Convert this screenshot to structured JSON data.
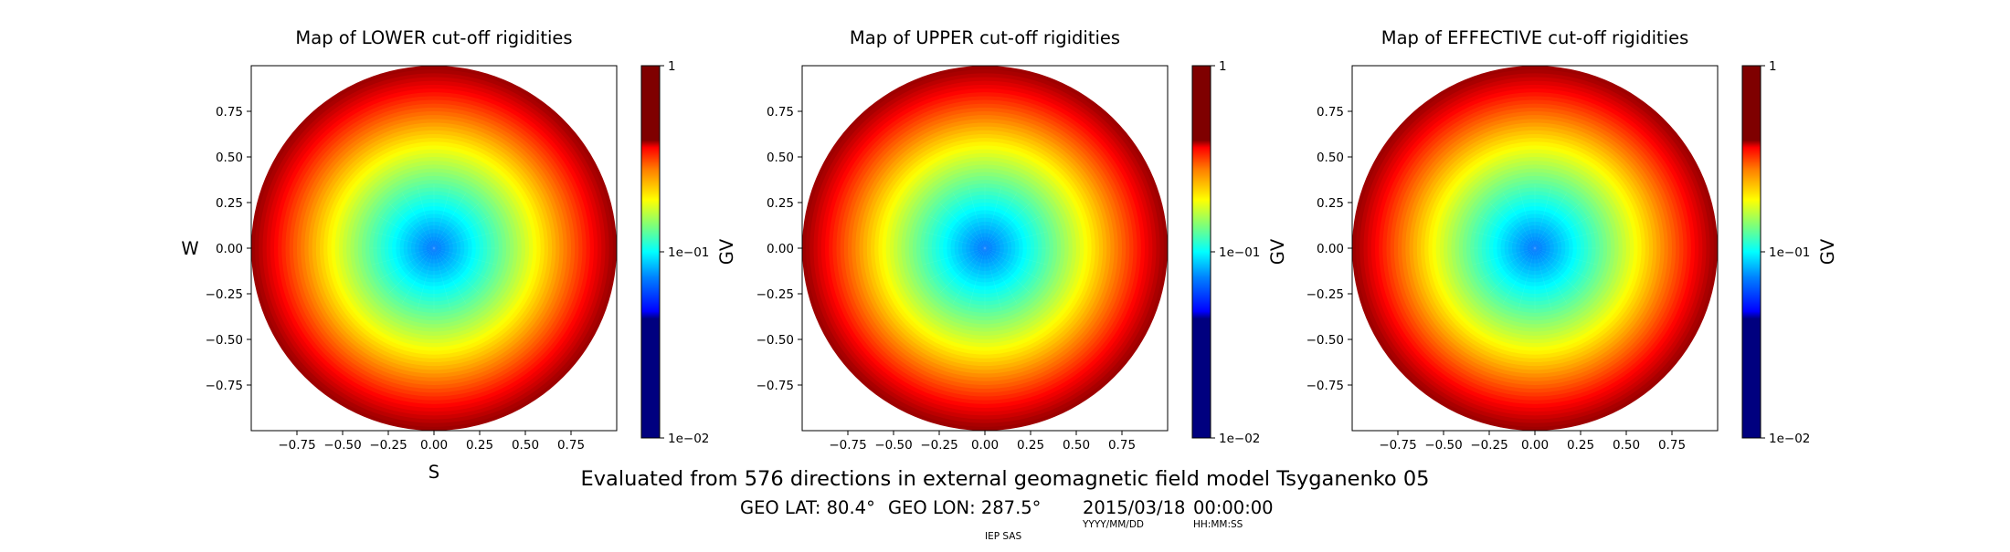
{
  "chart_data": [
    {
      "type": "heatmap",
      "title": "Map of LOWER cut-off rigidities",
      "xlabel": "S",
      "ylabel": "W",
      "x_ticks": [
        "−0.75",
        "−0.50",
        "−0.25",
        "0.00",
        "0.25",
        "0.50",
        "0.75"
      ],
      "y_ticks": [
        "0.75",
        "0.50",
        "0.25",
        "0.00",
        "−0.25",
        "−0.50",
        "−0.75"
      ],
      "xlim": [
        -1.0,
        1.0
      ],
      "ylim": [
        -1.0,
        1.0
      ],
      "colorbar": {
        "label": "GV",
        "scale": "log",
        "range": [
          0.01,
          1
        ],
        "ticks": [
          "1e−02",
          "1e−01",
          "1"
        ]
      },
      "field": {
        "description_shape": "filled circular contour map",
        "center_value": 0.03,
        "edge_value": 0.9
      }
    },
    {
      "type": "heatmap",
      "title": "Map of UPPER cut-off rigidities",
      "xlabel": "",
      "ylabel": "",
      "x_ticks": [
        "−0.75",
        "−0.50",
        "−0.25",
        "0.00",
        "0.25",
        "0.50",
        "0.75"
      ],
      "y_ticks": [
        "0.75",
        "0.50",
        "0.25",
        "0.00",
        "−0.25",
        "−0.50",
        "−0.75"
      ],
      "xlim": [
        -1.0,
        1.0
      ],
      "ylim": [
        -1.0,
        1.0
      ],
      "colorbar": {
        "label": "GV",
        "scale": "log",
        "range": [
          0.01,
          1
        ],
        "ticks": [
          "1e−02",
          "1e−01",
          "1"
        ]
      },
      "field": {
        "center_value": 0.03,
        "edge_value": 0.9
      }
    },
    {
      "type": "heatmap",
      "title": "Map of EFFECTIVE cut-off rigidities",
      "xlabel": "",
      "ylabel": "",
      "x_ticks": [
        "−0.75",
        "−0.50",
        "−0.25",
        "0.00",
        "0.25",
        "0.50",
        "0.75"
      ],
      "y_ticks": [
        "0.75",
        "0.50",
        "0.25",
        "0.00",
        "−0.25",
        "−0.50",
        "−0.75"
      ],
      "xlim": [
        -1.0,
        1.0
      ],
      "ylim": [
        -1.0,
        1.0
      ],
      "colorbar": {
        "label": "GV",
        "scale": "log",
        "range": [
          0.01,
          1
        ],
        "ticks": [
          "1e−02",
          "1e−01",
          "1"
        ]
      },
      "field": {
        "center_value": 0.03,
        "edge_value": 0.9
      }
    }
  ],
  "footer": {
    "caption": "Evaluated from 576 directions in external geomagnetic field model Tsyganenko 05",
    "geo_lat": "GEO LAT: 80.4°",
    "geo_lon": "GEO LON: 287.5°",
    "date": "2015/03/18",
    "time": "00:00:00",
    "date_format": "YYYY/MM/DD",
    "time_format": "HH:MM:SS",
    "institution": "IEP SAS"
  }
}
